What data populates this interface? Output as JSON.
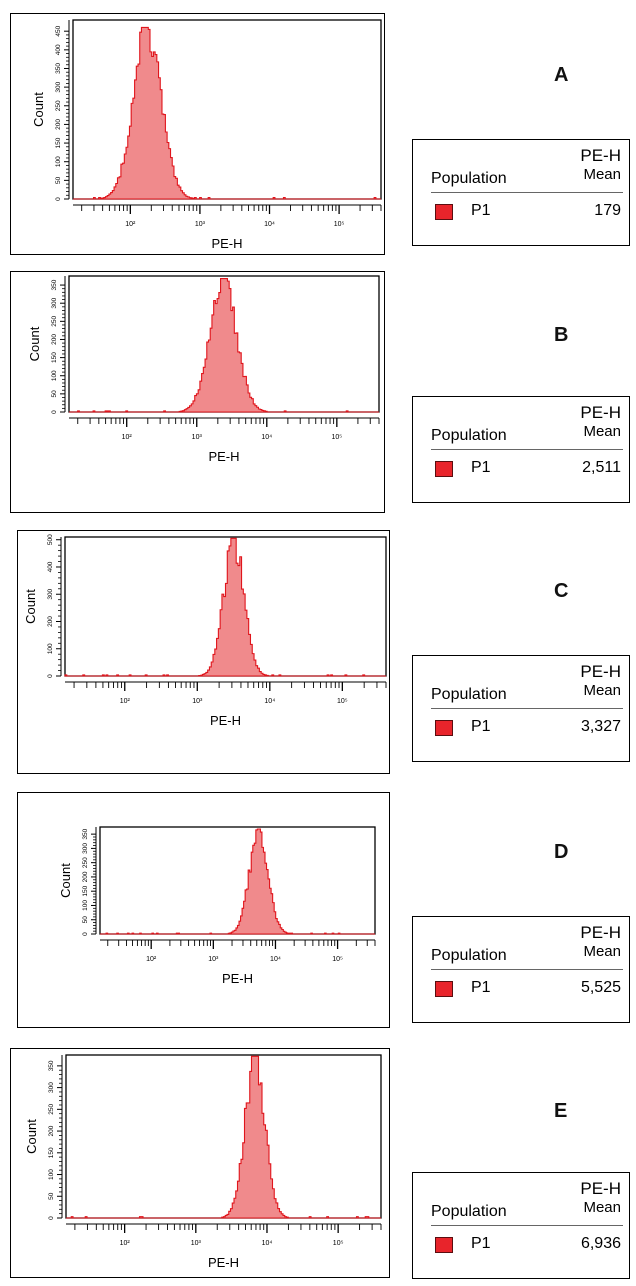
{
  "chart_data": [
    {
      "type": "area",
      "panel": "A",
      "xlabel": "PE-H",
      "ylabel": "Count",
      "x_scale": "log",
      "xlim": [
        15,
        400000
      ],
      "x_ticks": [
        "10²",
        "10³",
        "10⁴",
        "10⁵"
      ],
      "ylim": [
        0,
        480
      ],
      "y_ticks": [
        "0",
        "50",
        "100",
        "150",
        "200",
        "250",
        "300",
        "350",
        "400",
        "450"
      ],
      "y_tick_values": [
        0,
        50,
        100,
        150,
        200,
        250,
        300,
        350,
        400,
        450
      ],
      "series": [
        {
          "peak_x": 175,
          "peak_count": 460,
          "log_width": 0.2
        }
      ],
      "stats": {
        "column_header_top": "PE-H",
        "column_header_bottom": "Mean",
        "row_header": "Population",
        "population": "P1",
        "mean": "179"
      }
    },
    {
      "type": "area",
      "panel": "B",
      "xlabel": "PE-H",
      "ylabel": "Count",
      "x_scale": "log",
      "xlim": [
        15,
        400000
      ],
      "x_ticks": [
        "10²",
        "10³",
        "10⁴",
        "10⁵"
      ],
      "ylim": [
        0,
        375
      ],
      "y_ticks": [
        "0",
        "50",
        "100",
        "150",
        "200",
        "250",
        "300",
        "350"
      ],
      "y_tick_values": [
        0,
        50,
        100,
        150,
        200,
        250,
        300,
        350
      ],
      "series": [
        {
          "peak_x": 2400,
          "peak_count": 368,
          "log_width": 0.19
        }
      ],
      "stats": {
        "column_header_top": "PE-H",
        "column_header_bottom": "Mean",
        "row_header": "Population",
        "population": "P1",
        "mean": "2,511"
      }
    },
    {
      "type": "area",
      "panel": "C",
      "xlabel": "PE-H",
      "ylabel": "Count",
      "x_scale": "log",
      "xlim": [
        15,
        400000
      ],
      "x_ticks": [
        "10²",
        "10³",
        "10⁴",
        "10⁵"
      ],
      "ylim": [
        0,
        510
      ],
      "y_ticks": [
        "0",
        "100",
        "200",
        "300",
        "400",
        "500"
      ],
      "y_tick_values": [
        0,
        100,
        200,
        300,
        400,
        500
      ],
      "series": [
        {
          "peak_x": 3200,
          "peak_count": 505,
          "log_width": 0.14
        }
      ],
      "stats": {
        "column_header_top": "PE-H",
        "column_header_bottom": "Mean",
        "row_header": "Population",
        "population": "P1",
        "mean": "3,327"
      }
    },
    {
      "type": "area",
      "panel": "D",
      "xlabel": "PE-H",
      "ylabel": "Count",
      "x_scale": "log",
      "xlim": [
        15,
        400000
      ],
      "x_ticks": [
        "10²",
        "10³",
        "10⁴",
        "10⁵"
      ],
      "ylim": [
        0,
        375
      ],
      "y_ticks": [
        "0",
        "50",
        "100",
        "150",
        "200",
        "250",
        "300",
        "350"
      ],
      "y_tick_values": [
        0,
        50,
        100,
        150,
        200,
        250,
        300,
        350
      ],
      "series": [
        {
          "peak_x": 5400,
          "peak_count": 368,
          "log_width": 0.15
        }
      ],
      "stats": {
        "column_header_top": "PE-H",
        "column_header_bottom": "Mean",
        "row_header": "Population",
        "population": "P1",
        "mean": "5,525"
      }
    },
    {
      "type": "area",
      "panel": "E",
      "xlabel": "PE-H",
      "ylabel": "Count",
      "x_scale": "log",
      "xlim": [
        15,
        400000
      ],
      "x_ticks": [
        "10²",
        "10³",
        "10⁴",
        "10⁵"
      ],
      "ylim": [
        0,
        375
      ],
      "y_ticks": [
        "0",
        "50",
        "100",
        "150",
        "200",
        "250",
        "300",
        "350"
      ],
      "y_tick_values": [
        0,
        50,
        100,
        150,
        200,
        250,
        300,
        350
      ],
      "series": [
        {
          "peak_x": 6800,
          "peak_count": 372,
          "log_width": 0.14
        }
      ],
      "stats": {
        "column_header_top": "PE-H",
        "column_header_bottom": "Mean",
        "row_header": "Population",
        "population": "P1",
        "mean": "6,936"
      }
    }
  ],
  "colors": {
    "histogram_fill": "#f08a8c",
    "histogram_stroke": "#e0151c",
    "population_swatch": "#e8242b"
  }
}
